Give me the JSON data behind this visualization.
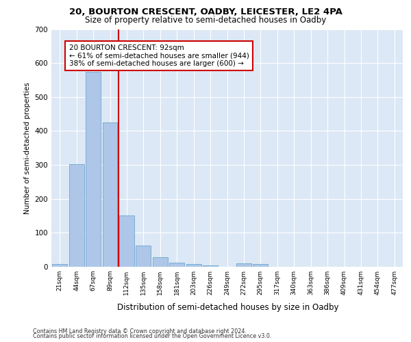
{
  "title1": "20, BOURTON CRESCENT, OADBY, LEICESTER, LE2 4PA",
  "title2": "Size of property relative to semi-detached houses in Oadby",
  "xlabel": "Distribution of semi-detached houses by size in Oadby",
  "ylabel": "Number of semi-detached properties",
  "categories": [
    "21sqm",
    "44sqm",
    "67sqm",
    "89sqm",
    "112sqm",
    "135sqm",
    "158sqm",
    "181sqm",
    "203sqm",
    "226sqm",
    "249sqm",
    "272sqm",
    "295sqm",
    "317sqm",
    "340sqm",
    "363sqm",
    "386sqm",
    "409sqm",
    "431sqm",
    "454sqm",
    "477sqm"
  ],
  "values": [
    8,
    302,
    575,
    425,
    152,
    62,
    28,
    12,
    8,
    5,
    0,
    10,
    8,
    0,
    0,
    0,
    0,
    0,
    0,
    0,
    0
  ],
  "bar_color": "#aec6e8",
  "bar_edge_color": "#5a9ec8",
  "annotation_text": "20 BOURTON CRESCENT: 92sqm\n← 61% of semi-detached houses are smaller (944)\n38% of semi-detached houses are larger (600) →",
  "annotation_box_color": "#ffffff",
  "annotation_box_edge": "#cc0000",
  "line_color": "#cc0000",
  "ylim": [
    0,
    700
  ],
  "yticks": [
    0,
    100,
    200,
    300,
    400,
    500,
    600,
    700
  ],
  "footer1": "Contains HM Land Registry data © Crown copyright and database right 2024.",
  "footer2": "Contains public sector information licensed under the Open Government Licence v3.0.",
  "plot_bg_color": "#dce8f5"
}
